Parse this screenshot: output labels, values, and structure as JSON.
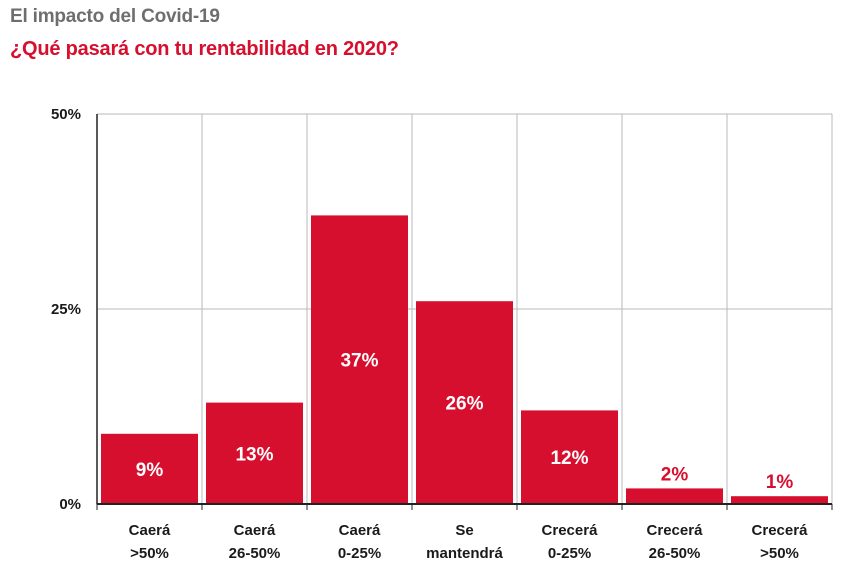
{
  "title": "El impacto del Covid-19",
  "subtitle": "¿Qué pasará con tu rentabilidad en 2020?",
  "colors": {
    "bar": "#d70f2e",
    "grid": "#b9b9b9",
    "axis": "#222222",
    "title": "#6e6e6e",
    "accent": "#d70f2e"
  },
  "chart_data": {
    "type": "bar",
    "categories": [
      [
        "Caerá",
        ">50%"
      ],
      [
        "Caerá",
        "26-50%"
      ],
      [
        "Caerá",
        "0-25%"
      ],
      [
        "Se",
        "mantendrá"
      ],
      [
        "Crecerá",
        "0-25%"
      ],
      [
        "Crecerá",
        "26-50%"
      ],
      [
        "Crecerá",
        ">50%"
      ]
    ],
    "values": [
      9,
      13,
      37,
      26,
      12,
      2,
      1
    ],
    "value_labels": [
      "9%",
      "13%",
      "37%",
      "26%",
      "12%",
      "2%",
      "1%"
    ],
    "yticks": [
      0,
      25,
      50
    ],
    "ytick_labels": [
      "0%",
      "25%",
      "50%"
    ],
    "ylim": [
      0,
      50
    ],
    "grid": true,
    "legend": "none"
  }
}
